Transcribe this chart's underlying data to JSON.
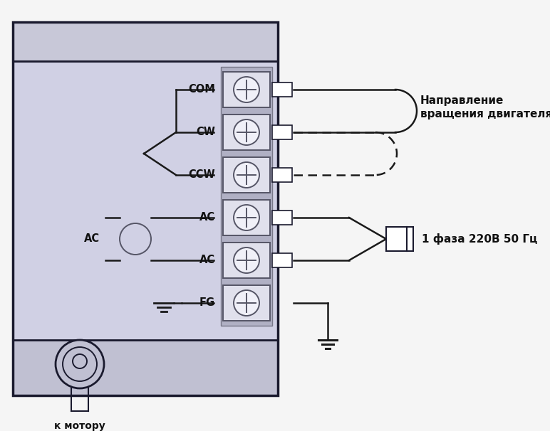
{
  "bg_color": "#f5f5f5",
  "device_top_bg": "#c8c8d8",
  "device_inner_bg": "#d0d0e4",
  "device_bottom_bg": "#c0c0d2",
  "terminal_col_bg": "#b0b0c4",
  "terminal_bg": "#e0e0ec",
  "terminal_inner_bg": "#f0f0f8",
  "border_dark": "#1a1a2e",
  "border_mid": "#555566",
  "wire_color": "#1a1a1a",
  "text_color": "#111111",
  "label_com": "COM",
  "label_cw": "CW",
  "label_ccw": "CCW",
  "label_ac1": "AC",
  "label_ac2": "AC",
  "label_ac_left": "AC",
  "label_fg": "FG",
  "label_rotation": "Направление\nвращения двигателя",
  "label_phase": "1 фаза 220В 50 Гц",
  "label_motor": "к мотору",
  "figsize": [
    7.72,
    6.06
  ],
  "dpi": 100
}
